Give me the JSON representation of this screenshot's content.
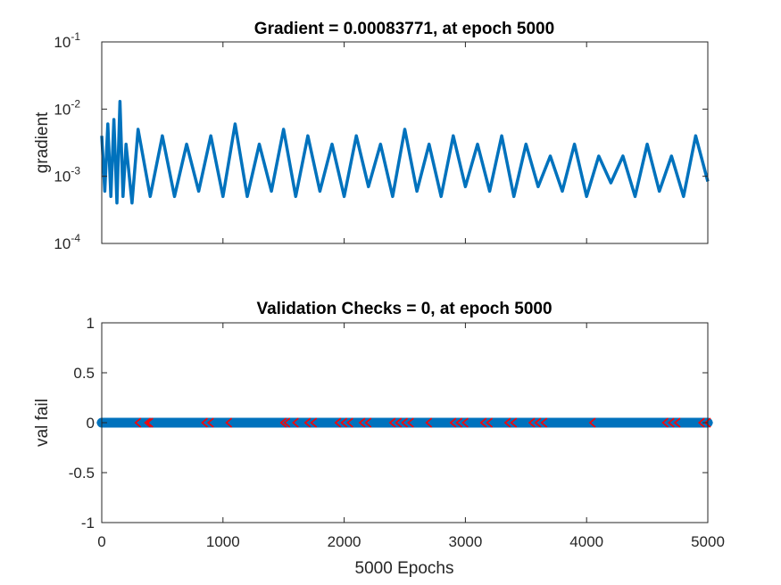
{
  "chart_data": [
    {
      "type": "line",
      "title": "Gradient = 0.00083771, at epoch 5000",
      "ylabel": "gradient",
      "xlabel": "",
      "yscale": "log",
      "ylim": [
        0.0001,
        0.1
      ],
      "xlim": [
        0,
        5000
      ],
      "yticks": [
        {
          "base": "10",
          "exp": "-4",
          "value": 0.0001
        },
        {
          "base": "10",
          "exp": "-3",
          "value": 0.001
        },
        {
          "base": "10",
          "exp": "-2",
          "value": 0.01
        },
        {
          "base": "10",
          "exp": "-1",
          "value": 0.1
        }
      ],
      "grid": false,
      "series_color": "#0072BD",
      "series": [
        {
          "x": [
            0,
            25,
            50,
            75,
            100,
            125,
            150,
            175,
            200,
            250,
            300,
            400,
            500,
            600,
            700,
            800,
            900,
            1000,
            1100,
            1200,
            1300,
            1400,
            1500,
            1600,
            1700,
            1800,
            1900,
            2000,
            2100,
            2200,
            2300,
            2400,
            2500,
            2600,
            2700,
            2800,
            2900,
            3000,
            3100,
            3200,
            3300,
            3400,
            3500,
            3600,
            3700,
            3800,
            3900,
            4000,
            4100,
            4200,
            4300,
            4400,
            4500,
            4600,
            4700,
            4800,
            4900,
            5000
          ],
          "values": [
            0.004,
            0.0006,
            0.006,
            0.0005,
            0.007,
            0.0004,
            0.013,
            0.0005,
            0.003,
            0.0004,
            0.005,
            0.0005,
            0.004,
            0.0005,
            0.003,
            0.0006,
            0.004,
            0.0005,
            0.006,
            0.0005,
            0.003,
            0.0006,
            0.005,
            0.0005,
            0.004,
            0.0006,
            0.003,
            0.0005,
            0.004,
            0.0007,
            0.003,
            0.0005,
            0.005,
            0.0006,
            0.003,
            0.0005,
            0.004,
            0.0007,
            0.003,
            0.0006,
            0.004,
            0.0005,
            0.003,
            0.0007,
            0.002,
            0.0006,
            0.003,
            0.0005,
            0.002,
            0.0008,
            0.002,
            0.0005,
            0.003,
            0.0006,
            0.002,
            0.0005,
            0.004,
            0.00083771
          ]
        }
      ]
    },
    {
      "type": "scatter",
      "title": "Validation Checks = 0, at epoch 5000",
      "ylabel": "val fail",
      "xlabel": "5000 Epochs",
      "ylim": [
        -1,
        1
      ],
      "xlim": [
        0,
        5000
      ],
      "yticks": [
        "-1",
        "-0.5",
        "0",
        "0.5",
        "1"
      ],
      "ytick_values": [
        -1,
        -0.5,
        0,
        0.5,
        1
      ],
      "xticks": [
        "0",
        "1000",
        "2000",
        "3000",
        "4000",
        "5000"
      ],
      "xtick_values": [
        0,
        1000,
        2000,
        3000,
        4000,
        5000
      ],
      "grid": false,
      "series_color": "#0072BD",
      "highlight_color": "#FF0000",
      "series": [
        {
          "x_range": [
            0,
            5000
          ],
          "value": 0
        }
      ],
      "highlighted_epochs": [
        300,
        380,
        400,
        850,
        900,
        1050,
        1500,
        1530,
        1600,
        1700,
        1750,
        1950,
        2000,
        2050,
        2150,
        2200,
        2400,
        2450,
        2500,
        2550,
        2700,
        2900,
        2950,
        3000,
        3150,
        3200,
        3350,
        3400,
        3550,
        3600,
        3650,
        4050,
        4650,
        4700,
        4750,
        4950,
        5000
      ]
    }
  ]
}
